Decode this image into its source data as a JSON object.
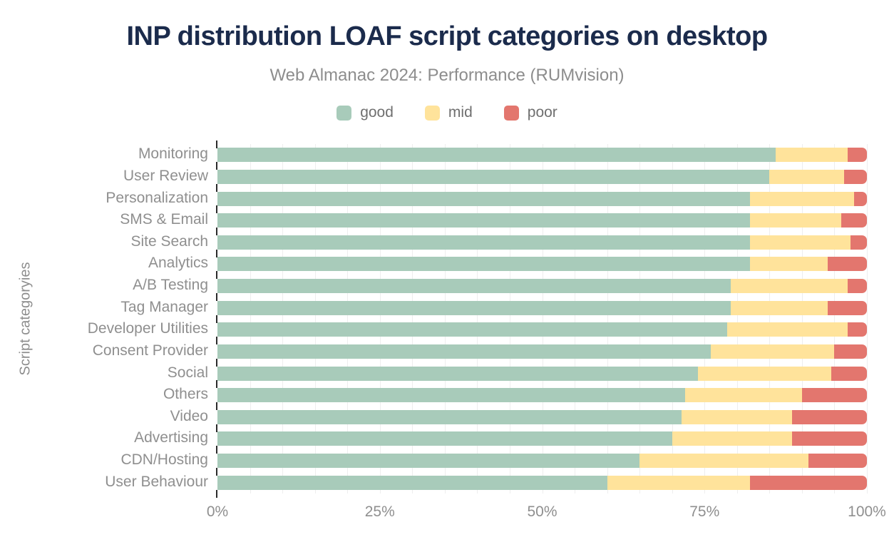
{
  "colors": {
    "title": "#1b2b4c",
    "subtitle": "#8d8d8d",
    "axis_label": "#8f8f8f",
    "legend_text": "#6f6f6f",
    "tick": "#2b2b2b",
    "gridline": "#eeeeee",
    "good": "#a8cbba",
    "mid": "#ffe39b",
    "poor": "#e3766e"
  },
  "chart_data": {
    "type": "bar",
    "orientation": "horizontal-stacked",
    "title": "INP distribution LOAF script categories on desktop",
    "subtitle": "Web Almanac 2024: Performance (RUMvision)",
    "ylabel": "Script categoryies",
    "xlabel": "",
    "x_axis": {
      "tick_labels": [
        "0%",
        "25%",
        "50%",
        "75%",
        "100%"
      ],
      "tick_values": [
        0,
        25,
        50,
        75,
        100
      ],
      "range": [
        0,
        100
      ],
      "gridline_step_percent": 5,
      "grid_on": true
    },
    "legend_position": "top-center",
    "categories": [
      "Monitoring",
      "User Review",
      "Personalization",
      "SMS & Email",
      "Site Search",
      "Analytics",
      "A/B Testing",
      "Tag Manager",
      "Developer Utilities",
      "Consent Provider",
      "Social",
      "Others",
      "Video",
      "Advertising",
      "CDN/Hosting",
      "User Behaviour"
    ],
    "series": [
      {
        "name": "good",
        "color": "#a8cbba",
        "values": [
          86,
          85,
          82,
          82,
          82,
          82,
          79,
          79,
          78.5,
          76,
          74,
          72,
          71.5,
          70,
          65,
          60
        ]
      },
      {
        "name": "mid",
        "color": "#ffe39b",
        "values": [
          11,
          11.5,
          16,
          14,
          15.5,
          12,
          18,
          15,
          18.5,
          19,
          20.5,
          18,
          17,
          18.5,
          26,
          22
        ]
      },
      {
        "name": "poor",
        "color": "#e3766e",
        "values": [
          3,
          3.5,
          2,
          4,
          2.5,
          6,
          3,
          6,
          3,
          5,
          5.5,
          10,
          11.5,
          11.5,
          9,
          18
        ]
      }
    ]
  }
}
